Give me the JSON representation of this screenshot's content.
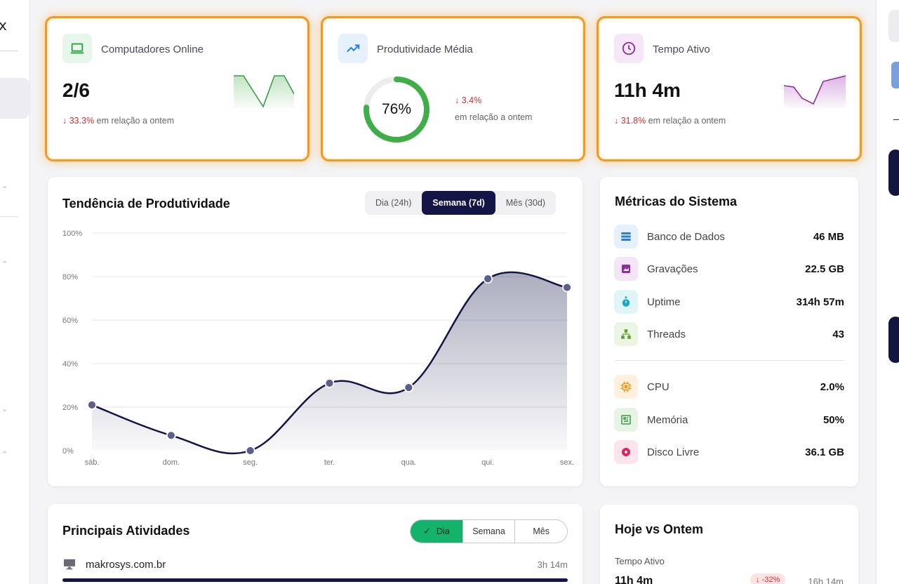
{
  "kpis": {
    "computers": {
      "title": "Computadores Online",
      "value": "2/6",
      "delta": "33.3%",
      "delta_text": "em relação a ontem",
      "icon": "laptop-icon"
    },
    "productivity": {
      "title": "Produtividade Média",
      "value": "76%",
      "percent": 76,
      "delta": "3.4%",
      "delta_text": "em relação a ontem",
      "icon": "trending-up-icon"
    },
    "active_time": {
      "title": "Tempo Ativo",
      "value": "11h 4m",
      "delta": "31.8%",
      "delta_text": "em relação a ontem",
      "icon": "clock-icon"
    }
  },
  "trend": {
    "title": "Tendência de Produtividade",
    "ranges": [
      "Dia (24h)",
      "Semana (7d)",
      "Mês (30d)"
    ],
    "active_range": "Semana (7d)"
  },
  "chart_data": {
    "type": "area",
    "title": "Tendência de Produtividade",
    "categories": [
      "sáb.",
      "dom.",
      "seg.",
      "ter.",
      "qua.",
      "qui.",
      "sex."
    ],
    "values": [
      21,
      7,
      0,
      31,
      29,
      79,
      75
    ],
    "yticks": [
      "0%",
      "20%",
      "40%",
      "60%",
      "80%",
      "100%"
    ],
    "ylim": [
      0,
      100
    ],
    "grid": true,
    "colors": {
      "line": "#121545",
      "fill": "#121545"
    }
  },
  "system": {
    "title": "Métricas do Sistema",
    "rows": [
      {
        "label": "Banco de Dados",
        "value": "46 MB",
        "icon": "database-icon"
      },
      {
        "label": "Gravações",
        "value": "22.5 GB",
        "icon": "recordings-icon"
      },
      {
        "label": "Uptime",
        "value": "314h 57m",
        "icon": "stopwatch-icon"
      },
      {
        "label": "Threads",
        "value": "43",
        "icon": "threads-icon"
      },
      {
        "label": "CPU",
        "value": "2.0%",
        "icon": "cpu-icon"
      },
      {
        "label": "Memória",
        "value": "50%",
        "icon": "memory-icon"
      },
      {
        "label": "Disco Livre",
        "value": "36.1 GB",
        "icon": "disk-icon"
      }
    ]
  },
  "activities": {
    "title": "Principais Atividades",
    "tabs": [
      "Dia",
      "Semana",
      "Mês"
    ],
    "active_tab": "Dia",
    "items": [
      {
        "name": "makrosys.com.br",
        "time": "3h 14m",
        "icon": "monitor-icon"
      }
    ]
  },
  "compare": {
    "title": "Hoje vs Ontem",
    "label": "Tempo Ativo",
    "today": "11h 4m",
    "delta": "-32%",
    "yesterday": "16h 14m"
  },
  "colors": {
    "accent": "#121545",
    "highlight": "#f39a1e",
    "down": "#d32f2f",
    "green": "#14b36b"
  }
}
